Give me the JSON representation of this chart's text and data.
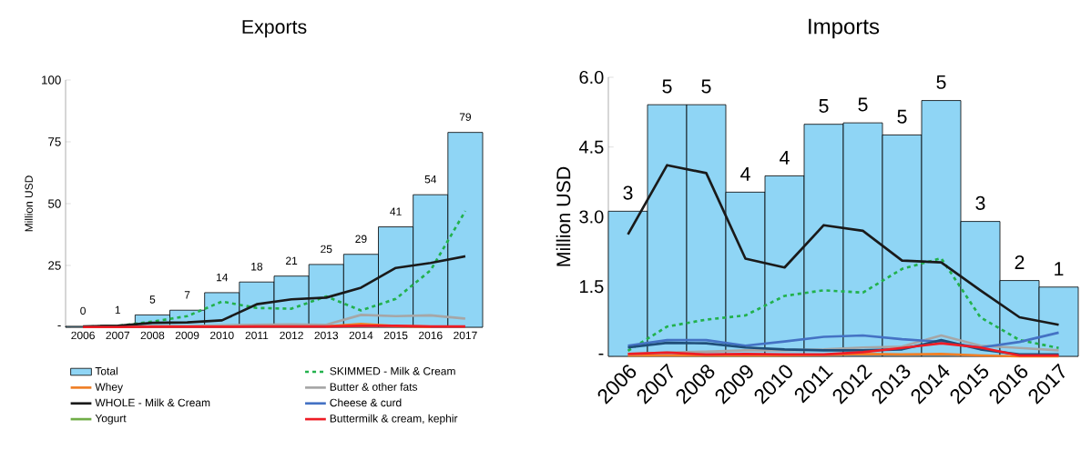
{
  "chart_data": [
    {
      "type": "bar",
      "title": "Exports",
      "ylabel": "Million USD",
      "legend": "bottom",
      "categories": [
        "2006",
        "2007",
        "2008",
        "2009",
        "2010",
        "2011",
        "2012",
        "2013",
        "2014",
        "2015",
        "2016",
        "2017"
      ],
      "ylim": [
        0,
        100
      ],
      "yticks": [
        {
          "value": 0,
          "label": "-"
        },
        25,
        50,
        75,
        100
      ],
      "series": [
        {
          "name": "Total",
          "color": "#8fd5f5",
          "values": [
            0.4,
            0.8,
            5.0,
            6.9,
            14.0,
            18.3,
            20.7,
            25.4,
            29.5,
            40.6,
            53.6,
            78.8
          ],
          "value_labels": [
            "0",
            "1",
            "5",
            "7",
            "14",
            "18",
            "21",
            "25",
            "29",
            "41",
            "54",
            "79"
          ]
        },
        {
          "name": "SKIMMED - Milk & Cream",
          "type": "line",
          "line_style": "dashed",
          "color": "#22b14c",
          "values": [
            0.2,
            0.5,
            2.3,
            4.5,
            10.4,
            7.8,
            7.5,
            12.5,
            6.8,
            11.5,
            23,
            47
          ]
        },
        {
          "name": "Whey",
          "type": "line",
          "color": "#f07f26",
          "values": [
            null,
            null,
            null,
            null,
            null,
            null,
            null,
            0.3,
            1.3,
            0.5,
            0.2,
            null
          ]
        },
        {
          "name": "Butter & other fats",
          "type": "line",
          "color": "#a6a6a6",
          "values": [
            0.2,
            0.3,
            0.5,
            0.5,
            0.8,
            1.0,
            1.2,
            1.0,
            5.0,
            4.5,
            4.8,
            3.5
          ]
        },
        {
          "name": "WHOLE - Milk & Cream",
          "type": "line",
          "color": "#1a1a1a",
          "values": [
            0.3,
            0.6,
            1.8,
            2.0,
            2.8,
            9.3,
            11.3,
            12,
            16,
            24,
            26,
            28.7
          ]
        },
        {
          "name": "Cheese & curd",
          "type": "line",
          "color": "#4472c4",
          "values": [
            null,
            null,
            null,
            null,
            null,
            null,
            null,
            null,
            null,
            null,
            null,
            null
          ]
        },
        {
          "name": "Yogurt",
          "type": "line",
          "color": "#70ad47",
          "values": [
            null,
            null,
            null,
            null,
            null,
            null,
            null,
            null,
            null,
            null,
            null,
            null
          ]
        },
        {
          "name": "Buttermilk & cream, kephir",
          "type": "line",
          "color": "#ee1c25",
          "values": [
            0.1,
            0.1,
            0.2,
            0.2,
            0.2,
            0.3,
            0.3,
            0.3,
            0.6,
            0.6,
            0.3,
            0.3
          ]
        }
      ]
    },
    {
      "type": "bar",
      "title": "Imports",
      "ylabel": "Million USD",
      "categories": [
        "2006",
        "2007",
        "2008",
        "2009",
        "2010",
        "2011",
        "2012",
        "2013",
        "2014",
        "2015",
        "2016",
        "2017"
      ],
      "ylim": [
        0,
        6
      ],
      "yticks": [
        {
          "value": 0,
          "label": "-"
        },
        1.5,
        {
          "value": 3,
          "label": "3.0"
        },
        4.5,
        {
          "value": 6,
          "label": "6.0"
        }
      ],
      "series": [
        {
          "color": "#8fd5f5",
          "values": [
            3.12,
            5.41,
            5.41,
            3.53,
            3.88,
            4.99,
            5.02,
            4.76,
            5.5,
            2.9,
            1.63,
            1.49
          ],
          "value_labels": [
            "3",
            "5",
            "5",
            "4",
            "4",
            "5",
            "5",
            "5",
            "5",
            "3",
            "2",
            "1"
          ]
        },
        {
          "type": "line",
          "line_style": "dashed",
          "color": "#22b14c",
          "values": [
            0.12,
            0.64,
            0.79,
            0.88,
            1.3,
            1.42,
            1.37,
            1.88,
            2.11,
            0.84,
            0.35,
            0.18
          ]
        },
        {
          "type": "line",
          "color": "#f07f26",
          "values": [
            0.02,
            0.02,
            0.02,
            0.02,
            0.02,
            0.03,
            0.05,
            0.04,
            0.05,
            0.02,
            0,
            0
          ]
        },
        {
          "type": "line",
          "color": "#a6a6a6",
          "values": [
            0.05,
            0.08,
            0.1,
            0.13,
            0.13,
            0.15,
            0.19,
            0.21,
            0.45,
            0.23,
            0.18,
            0.13
          ]
        },
        {
          "type": "line",
          "color": "#1a1a1a",
          "values": [
            2.62,
            4.11,
            3.94,
            2.1,
            1.91,
            2.82,
            2.7,
            2.06,
            2.02,
            1.42,
            0.84,
            0.68
          ]
        },
        {
          "type": "line",
          "color": "#4472c4",
          "values": [
            0.23,
            0.35,
            0.35,
            0.23,
            0.32,
            0.42,
            0.45,
            0.37,
            0.31,
            0.19,
            0.31,
            0.51
          ]
        },
        {
          "type": "line",
          "color": "#1f4e79",
          "values": [
            0.19,
            0.29,
            0.28,
            0.19,
            0.15,
            0.13,
            0.13,
            0.15,
            0.35,
            0.15,
            0.04,
            0.04
          ]
        },
        {
          "type": "line",
          "color": "#ee1c25",
          "values": [
            0.05,
            0.08,
            0.04,
            0.05,
            0.04,
            0.04,
            0.09,
            0.18,
            0.28,
            0.19,
            0.02,
            0.02
          ]
        }
      ]
    }
  ]
}
